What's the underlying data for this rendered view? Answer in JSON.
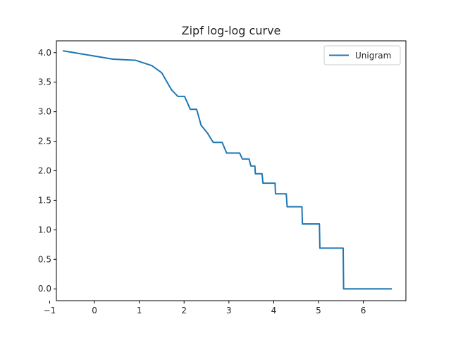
{
  "chart_data": {
    "type": "line",
    "title": "Zipf log-log curve",
    "xlabel": "",
    "ylabel": "",
    "xlim": [
      -0.85,
      6.95
    ],
    "ylim": [
      -0.2,
      4.2
    ],
    "x_ticks": [
      -1,
      0,
      1,
      2,
      3,
      4,
      5,
      6
    ],
    "x_tick_labels": [
      "−1",
      "0",
      "1",
      "2",
      "3",
      "4",
      "5",
      "6"
    ],
    "y_ticks": [
      0.0,
      0.5,
      1.0,
      1.5,
      2.0,
      2.5,
      3.0,
      3.5,
      4.0
    ],
    "y_tick_labels": [
      "0.0",
      "0.5",
      "1.0",
      "1.5",
      "2.0",
      "2.5",
      "3.0",
      "3.5",
      "4.0"
    ],
    "grid": false,
    "legend_position": "top-right",
    "series": [
      {
        "name": "Unigram",
        "color": "#1f77b4",
        "x": [
          -0.69,
          0.41,
          0.92,
          1.28,
          1.5,
          1.72,
          1.86,
          2.01,
          2.14,
          2.28,
          2.38,
          2.52,
          2.65,
          2.85,
          2.95,
          3.24,
          3.3,
          3.45,
          3.49,
          3.58,
          3.59,
          3.74,
          3.76,
          4.03,
          4.04,
          4.28,
          4.3,
          4.63,
          4.64,
          5.02,
          5.03,
          5.55,
          5.56,
          6.62
        ],
        "y": [
          4.03,
          3.89,
          3.87,
          3.78,
          3.66,
          3.37,
          3.26,
          3.26,
          3.04,
          3.04,
          2.77,
          2.64,
          2.48,
          2.48,
          2.3,
          2.3,
          2.2,
          2.2,
          2.08,
          2.08,
          1.95,
          1.95,
          1.79,
          1.79,
          1.61,
          1.61,
          1.39,
          1.39,
          1.1,
          1.1,
          0.69,
          0.69,
          0.0,
          0.0
        ]
      }
    ]
  }
}
